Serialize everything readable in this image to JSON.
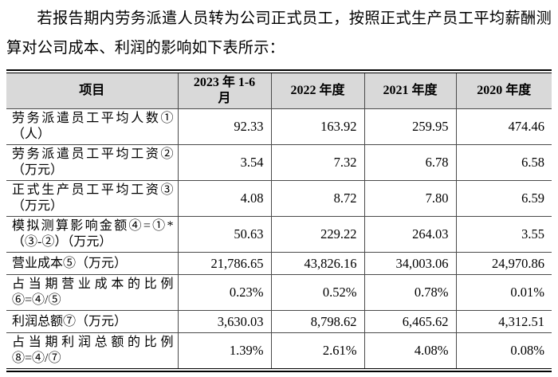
{
  "document": {
    "intro_paragraph": "若报告期内劳务派遣人员转为公司正式员工，按照正式生产员工平均薪酬测算对公司成本、利润的影响如下表所示：",
    "table": {
      "column_headers": [
        "项目",
        "2023 年 1-6 月",
        "2022 年度",
        "2021 年度",
        "2020 年度"
      ],
      "rows": [
        {
          "label": "劳务派遣员工平均人数①（人）",
          "values": [
            "92.33",
            "163.92",
            "259.95",
            "474.46"
          ]
        },
        {
          "label": "劳务派遣员工平均工资②（万元）",
          "values": [
            "3.54",
            "7.32",
            "6.78",
            "6.58"
          ]
        },
        {
          "label": "正式生产员工平均工资③（万元）",
          "values": [
            "4.08",
            "8.72",
            "7.80",
            "6.59"
          ]
        },
        {
          "label": "模拟测算影响金额④=①*（③-②）（万元）",
          "values": [
            "50.63",
            "229.22",
            "264.03",
            "3.55"
          ]
        },
        {
          "label": "营业成本⑤（万元）",
          "values": [
            "21,786.65",
            "43,826.16",
            "34,003.06",
            "24,970.86"
          ]
        },
        {
          "label": "占当期营业成本的比例⑥=④/⑤",
          "values": [
            "0.23%",
            "0.52%",
            "0.78%",
            "0.01%"
          ]
        },
        {
          "label": "利润总额⑦（万元）",
          "values": [
            "3,630.03",
            "8,798.62",
            "6,465.62",
            "4,312.51"
          ]
        },
        {
          "label": "占当期利润总额的比例⑧=④/⑦",
          "values": [
            "1.39%",
            "2.61%",
            "4.08%",
            "0.08%"
          ]
        }
      ]
    },
    "colors": {
      "header_background": "#d9d9d9",
      "border": "#000000",
      "text": "#000000",
      "page_background": "#ffffff"
    }
  }
}
